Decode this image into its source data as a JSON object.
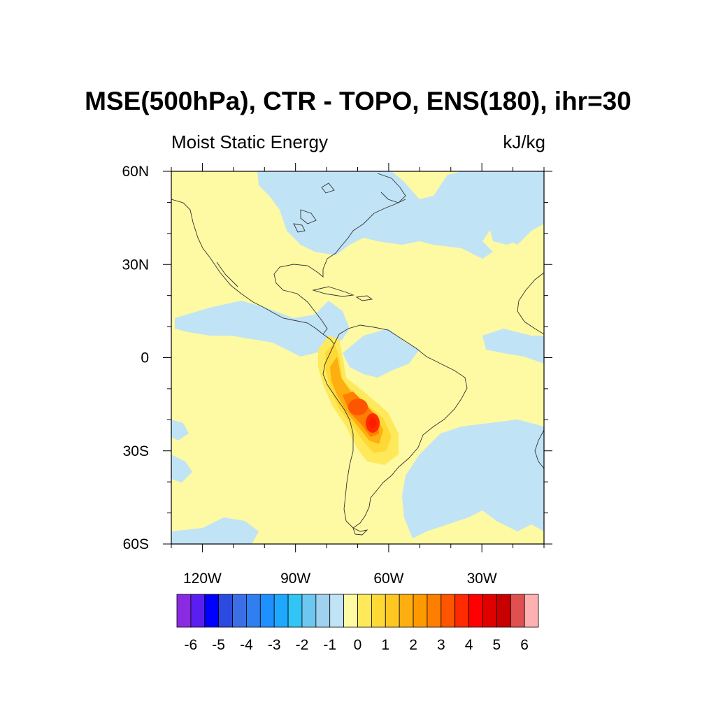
{
  "title": "MSE(500hPa), CTR - TOPO, ENS(180), ihr=30",
  "left_subtitle": "Moist Static Energy",
  "right_subtitle": "kJ/kg",
  "map": {
    "lat_ticks": [
      {
        "value": 60,
        "label": "60N"
      },
      {
        "value": 30,
        "label": "30N"
      },
      {
        "value": 0,
        "label": "0"
      },
      {
        "value": -30,
        "label": "30S"
      },
      {
        "value": -60,
        "label": "60S"
      }
    ],
    "lon_ticks": [
      {
        "value": -120,
        "label": "120W"
      },
      {
        "value": -90,
        "label": "90W"
      },
      {
        "value": -60,
        "label": "60W"
      },
      {
        "value": -30,
        "label": "30W"
      }
    ],
    "lon_range": [
      -130,
      -10
    ],
    "lat_range": [
      -60,
      60
    ]
  },
  "colors": {
    "background_field": "#fef9a3",
    "negative_field": "#c0e3f5",
    "coast": "#333333",
    "peak": "#ff1a00"
  },
  "colorbar": {
    "levels": [
      -6,
      -5.5,
      -5,
      -4.5,
      -4,
      -3.5,
      -3,
      -2.5,
      -2,
      -1.5,
      -1,
      -0.5,
      0,
      0.5,
      1,
      1.5,
      2,
      2.5,
      3,
      3.5,
      4,
      4.5,
      5,
      5.5,
      6
    ],
    "colors": [
      "#8a2be2",
      "#5a1ff0",
      "#0000ff",
      "#2a4ae0",
      "#3c6ee6",
      "#2f7ff0",
      "#1f90ff",
      "#1fa8ff",
      "#32c4f5",
      "#6ec7f0",
      "#9fd2ee",
      "#c0e3f5",
      "#fef9a3",
      "#fee95a",
      "#fed835",
      "#fec722",
      "#feae0e",
      "#fe9a00",
      "#fe7f00",
      "#fe5500",
      "#fe2a00",
      "#fe0000",
      "#e00000",
      "#c80000",
      "#e05050",
      "#ffb0b0"
    ],
    "labels": [
      {
        "value": -6,
        "text": "-6"
      },
      {
        "value": -5,
        "text": "-5"
      },
      {
        "value": -4,
        "text": "-4"
      },
      {
        "value": -3,
        "text": "-3"
      },
      {
        "value": -2,
        "text": "-2"
      },
      {
        "value": -1,
        "text": "-1"
      },
      {
        "value": 0,
        "text": "0"
      },
      {
        "value": 1,
        "text": "1"
      },
      {
        "value": 2,
        "text": "2"
      },
      {
        "value": 3,
        "text": "3"
      },
      {
        "value": 4,
        "text": "4"
      },
      {
        "value": 5,
        "text": "5"
      },
      {
        "value": 6,
        "text": "6"
      }
    ]
  }
}
